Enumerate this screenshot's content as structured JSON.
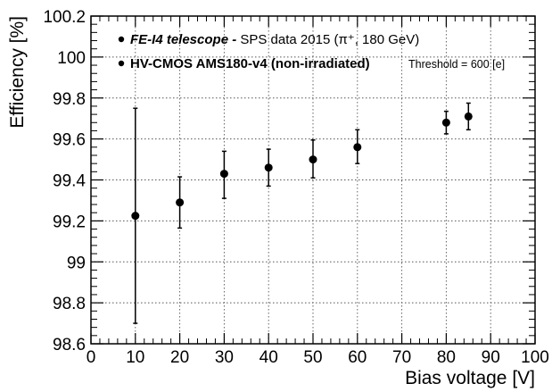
{
  "chart_data": {
    "type": "scatter",
    "xlabel": "Bias voltage [V]",
    "ylabel": "Efficiency [%]",
    "xlim": [
      0,
      100
    ],
    "ylim": [
      98.6,
      100.2
    ],
    "x_ticks": [
      "0",
      "10",
      "20",
      "30",
      "40",
      "50",
      "60",
      "70",
      "80",
      "90",
      "100"
    ],
    "y_ticks": [
      "98.6",
      "98.8",
      "99",
      "99.2",
      "99.4",
      "99.6",
      "99.8",
      "100",
      "100.2"
    ],
    "grid": true,
    "legend": {
      "line1_bold_italic": "FE-I4 telescope -",
      "line1_rest": " SPS data 2015 (π⁺, 180 GeV)",
      "line2_bold": "HV-CMOS AMS180-v4 (non-irradiated)",
      "line2_small": "Threshold = 600 [e]"
    },
    "series": [
      {
        "points": [
          {
            "x": 10,
            "y": 99.225,
            "err_low": 98.7,
            "err_high": 99.75
          },
          {
            "x": 20,
            "y": 99.29,
            "err_low": 99.165,
            "err_high": 99.415
          },
          {
            "x": 30,
            "y": 99.43,
            "err_low": 99.31,
            "err_high": 99.54
          },
          {
            "x": 40,
            "y": 99.46,
            "err_low": 99.37,
            "err_high": 99.55
          },
          {
            "x": 50,
            "y": 99.5,
            "err_low": 99.41,
            "err_high": 99.595
          },
          {
            "x": 60,
            "y": 99.56,
            "err_low": 99.48,
            "err_high": 99.645
          },
          {
            "x": 80,
            "y": 99.68,
            "err_low": 99.625,
            "err_high": 99.735
          },
          {
            "x": 85,
            "y": 99.71,
            "err_low": 99.645,
            "err_high": 99.775
          }
        ]
      }
    ]
  }
}
